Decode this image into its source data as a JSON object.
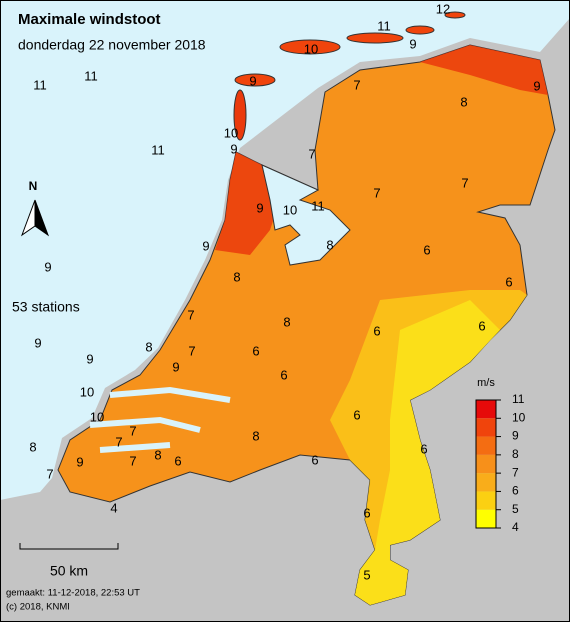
{
  "header": {
    "title": "Maximale windstoot",
    "subtitle": "donderdag 22 november 2018"
  },
  "north": "N",
  "station_count": "53 stations",
  "scale": "50 km",
  "footer": {
    "made": "gemaakt: 11-12-2018, 22:53 UT",
    "copyright": "(c) 2018, KNMI"
  },
  "legend": {
    "unit": "m/s",
    "levels": [
      11,
      10,
      9,
      8,
      7,
      6,
      5,
      4
    ],
    "colors": [
      "#e60a0a",
      "#f0440c",
      "#f46d12",
      "#f7901a",
      "#f9ad1a",
      "#fbd012",
      "#ffff00"
    ]
  },
  "stations": [
    12,
    11,
    10,
    9,
    9,
    11,
    11,
    7,
    9,
    8,
    10,
    9,
    11,
    7,
    7,
    7,
    9,
    10,
    11,
    9,
    8,
    6,
    9,
    8,
    6,
    7,
    8,
    6,
    6,
    9,
    8,
    7,
    6,
    9,
    9,
    6,
    10,
    10,
    6,
    8,
    7,
    7,
    6,
    8,
    8,
    9,
    7,
    6,
    6,
    7,
    4,
    6,
    5
  ]
}
